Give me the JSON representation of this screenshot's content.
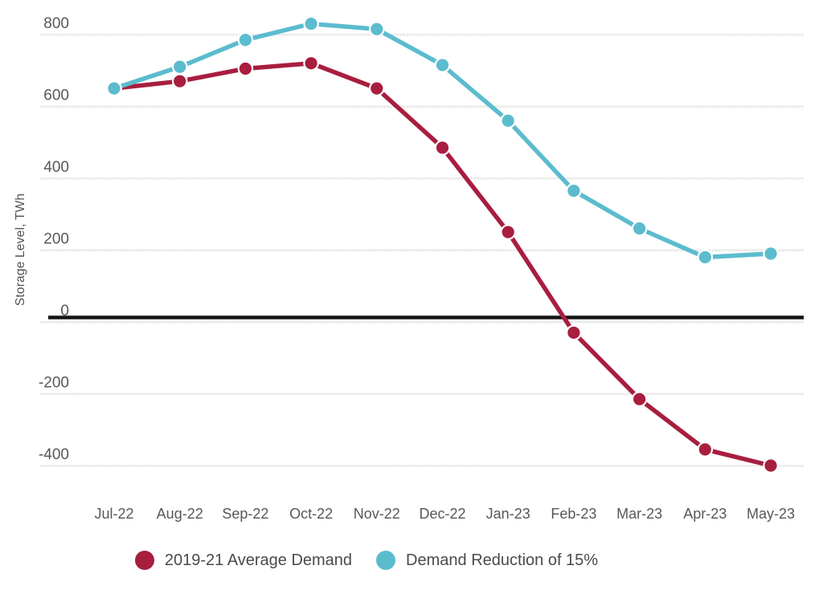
{
  "chart_data": {
    "type": "line",
    "title": "",
    "xlabel": "",
    "ylabel": "Storage Level, TWh",
    "categories": [
      "Jul-22",
      "Aug-22",
      "Sep-22",
      "Oct-22",
      "Nov-22",
      "Dec-22",
      "Jan-23",
      "Feb-23",
      "Mar-23",
      "Apr-23",
      "May-23"
    ],
    "yticks": [
      800,
      600,
      400,
      200,
      0,
      -200,
      -400
    ],
    "ylim": [
      -450,
      870
    ],
    "grid": true,
    "zero_line_emphasis": true,
    "legend_position": "bottom",
    "series": [
      {
        "name": "2019-21 Average Demand",
        "color": "#A81E3F",
        "values": [
          650,
          670,
          705,
          720,
          650,
          485,
          250,
          -30,
          -215,
          -355,
          -400
        ]
      },
      {
        "name": "Demand Reduction of 15%",
        "color": "#5BBCCE",
        "values": [
          650,
          710,
          785,
          830,
          815,
          715,
          560,
          365,
          260,
          180,
          190
        ]
      }
    ]
  },
  "colors": {
    "background": "#FFFFFF",
    "grid": "#E5E5E5",
    "grid_texture": "#D8D8D8",
    "zero_line": "#141414",
    "axis_text": "#56575A",
    "legend_text": "#4A4A4B"
  }
}
